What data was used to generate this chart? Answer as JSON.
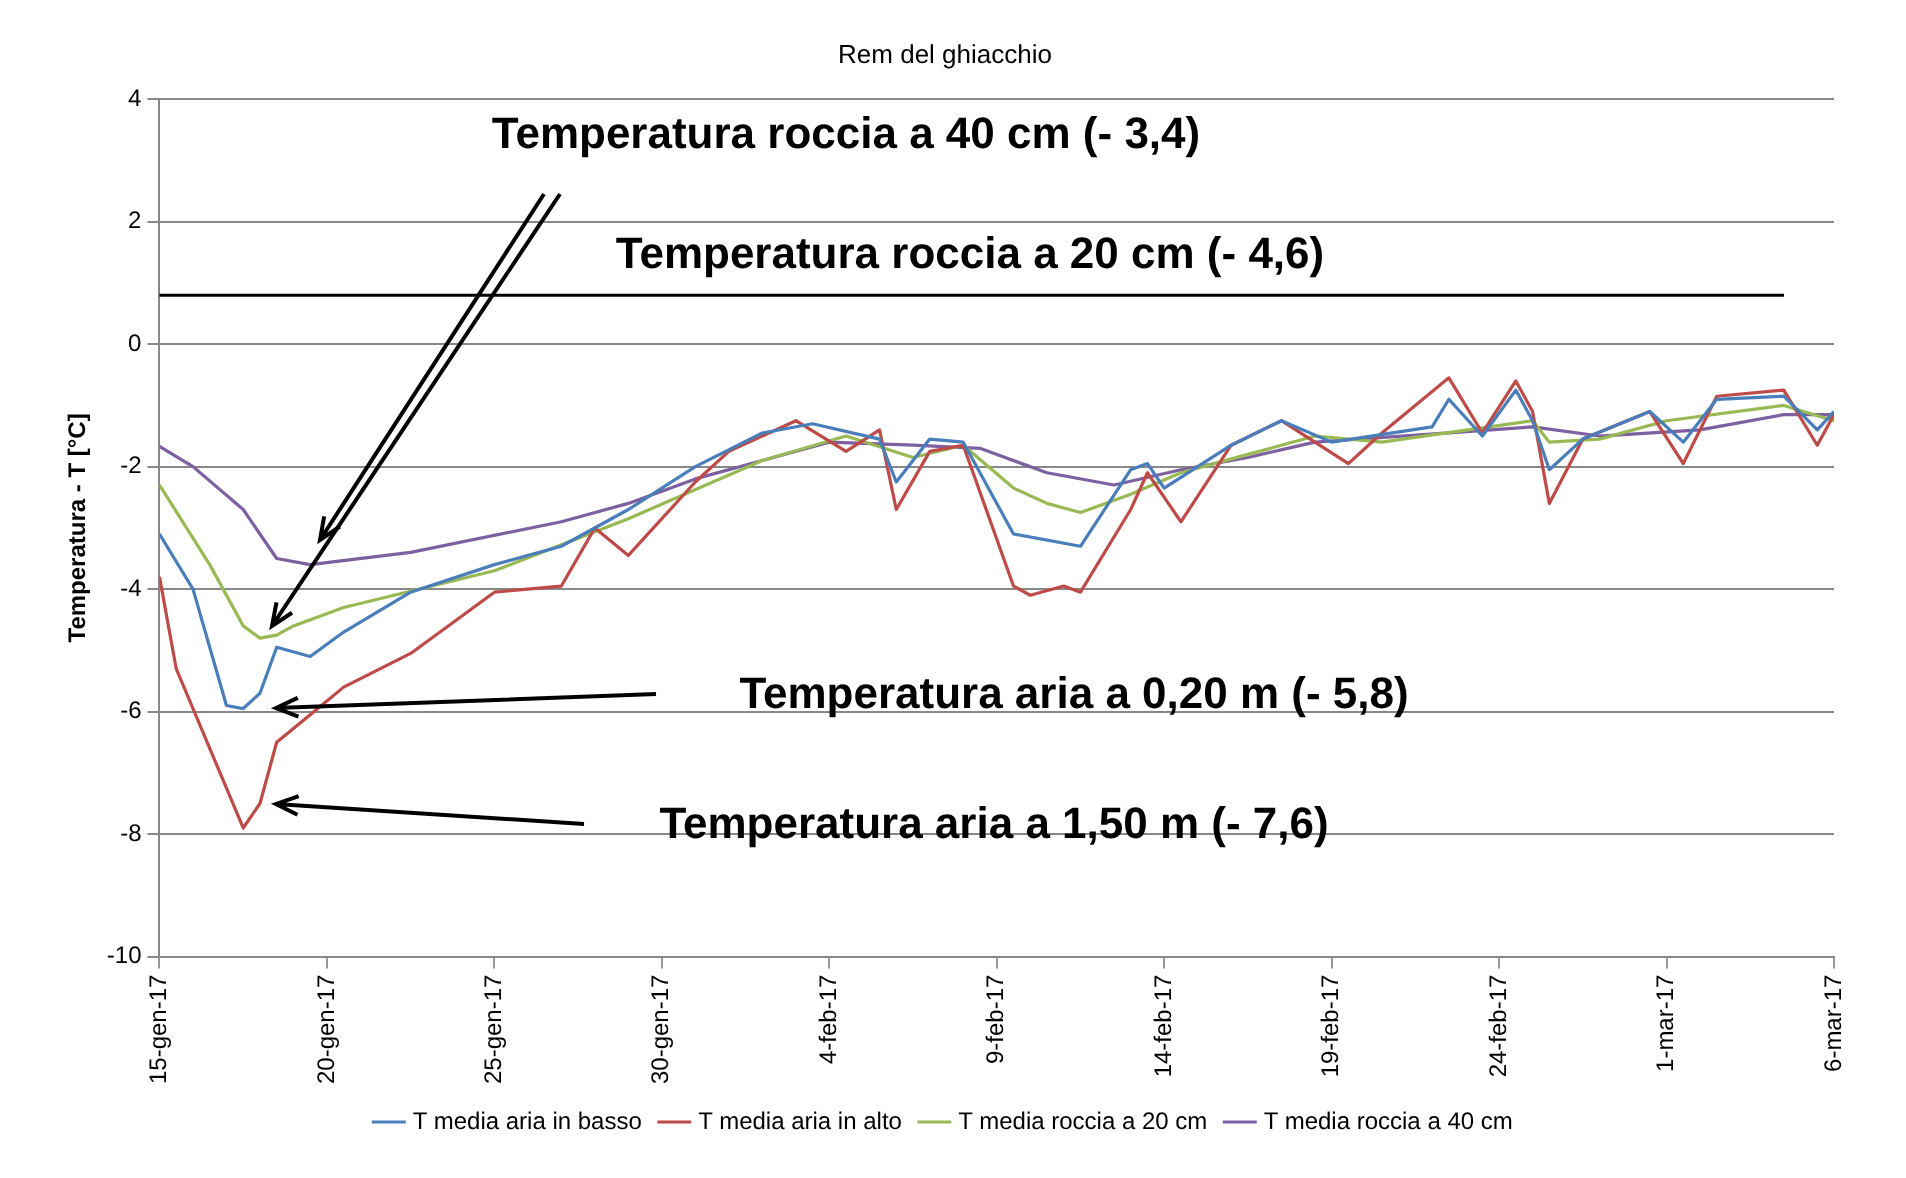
{
  "chart_data": {
    "type": "line",
    "title": "Rem del ghiacchio",
    "ylabel": "Temperatura - T [°C]",
    "xlim": [
      "--01-15",
      "--03-06"
    ],
    "xticks": [
      {
        "value": "--01-15",
        "label": "15-gen-17"
      },
      {
        "value": "--01-20",
        "label": "20-gen-17"
      },
      {
        "value": "--01-25",
        "label": "25-gen-17"
      },
      {
        "value": "--01-30",
        "label": "30-gen-17"
      },
      {
        "value": "--02-04",
        "label": "4-feb-17"
      },
      {
        "value": "--02-09",
        "label": "9-feb-17"
      },
      {
        "value": "--02-14",
        "label": "14-feb-17"
      },
      {
        "value": "--02-19",
        "label": "19-feb-17"
      },
      {
        "value": "--02-24",
        "label": "24-feb-17"
      },
      {
        "value": "--03-01",
        "label": "1-mar-17"
      },
      {
        "value": "--03-06",
        "label": "6-mar-17"
      }
    ],
    "ylim": [
      -10,
      4
    ],
    "yticks": [
      -10,
      -8,
      -6,
      -4,
      -2,
      0,
      2,
      4
    ],
    "grid": "y",
    "legend": "bottom",
    "marker": "none",
    "line_style": "solid",
    "ref_lines": [
      {
        "axis": "y",
        "value": 0.8,
        "color": "#000000"
      }
    ],
    "annotations": [
      "Temperatura roccia a 40 cm (- 3,4)",
      "Temperatura roccia a 20 cm (- 4,6)",
      "Temperatura aria a 0,20 m (- 5,8)",
      "Temperatura aria a 1,50 m (- 7,6)"
    ],
    "series": [
      {
        "name": "T media aria in basso",
        "color": "#4a7ebb",
        "x": [
          "--01-15",
          "--01-16",
          "--01-17",
          "--01-17T12:00",
          "--01-18",
          "--01-18T12:00",
          "--01-19T12:00",
          "--01-20T12:00",
          "--01-22T12:00",
          "--01-25",
          "--01-27",
          "--01-29",
          "--01-31",
          "--02-02",
          "--02-03T12:00",
          "--02-05T12:00",
          "--02-06",
          "--02-07",
          "--02-08",
          "--02-09T12:00",
          "--02-11T12:00",
          "--02-13",
          "--02-13T12:00",
          "--02-14",
          "--02-16",
          "--02-17T12:00",
          "--02-19",
          "--02-22",
          "--02-22T12:00",
          "--02-23T12:00",
          "--02-24T12:00",
          "--02-25",
          "--02-25T12:00",
          "--02-26T12:00",
          "--02-28T12:00",
          "--03-01T12:00",
          "--03-02T12:00",
          "--03-04T12:00",
          "--03-05T12:00",
          "--03-06"
        ],
        "values": [
          -3.1,
          -4.0,
          -5.9,
          -5.95,
          -5.7,
          -4.95,
          -5.1,
          -4.7,
          -4.05,
          -3.6,
          -3.3,
          -2.7,
          -2.0,
          -1.45,
          -1.3,
          -1.55,
          -2.25,
          -1.55,
          -1.6,
          -3.1,
          -3.3,
          -2.05,
          -1.95,
          -2.35,
          -1.65,
          -1.25,
          -1.6,
          -1.35,
          -0.9,
          -1.5,
          -0.75,
          -1.25,
          -2.05,
          -1.55,
          -1.1,
          -1.6,
          -0.9,
          -0.85,
          -1.4,
          -1.1
        ]
      },
      {
        "name": "T media aria in alto",
        "color": "#be4b48",
        "x": [
          "--01-15",
          "--01-15T12:00",
          "--01-16T12:00",
          "--01-17T12:00",
          "--01-18",
          "--01-18T12:00",
          "--01-19T12:00",
          "--01-20T12:00",
          "--01-22T12:00",
          "--01-25",
          "--01-27",
          "--01-28",
          "--01-29",
          "--01-31",
          "--02-01",
          "--02-03",
          "--02-04T12:00",
          "--02-05T12:00",
          "--02-06",
          "--02-07",
          "--02-08",
          "--02-09T12:00",
          "--02-10",
          "--02-11",
          "--02-11T12:00",
          "--02-13",
          "--02-13T12:00",
          "--02-14T12:00",
          "--02-16",
          "--02-17T12:00",
          "--02-19T12:00",
          "--02-20T12:00",
          "--02-22T12:00",
          "--02-23T12:00",
          "--02-24T12:00",
          "--02-25",
          "--02-25T12:00",
          "--02-26T12:00",
          "--02-28T12:00",
          "--03-01T12:00",
          "--03-02T12:00",
          "--03-04T12:00",
          "--03-05T12:00",
          "--03-06"
        ],
        "values": [
          -3.8,
          -5.3,
          -6.6,
          -7.9,
          -7.5,
          -6.5,
          -6.05,
          -5.6,
          -5.05,
          -4.05,
          -3.95,
          -3.0,
          -3.45,
          -2.25,
          -1.75,
          -1.25,
          -1.75,
          -1.4,
          -2.7,
          -1.75,
          -1.65,
          -3.95,
          -4.1,
          -3.95,
          -4.05,
          -2.7,
          -2.1,
          -2.9,
          -1.65,
          -1.25,
          -1.95,
          -1.45,
          -0.55,
          -1.45,
          -0.6,
          -1.1,
          -2.6,
          -1.55,
          -1.1,
          -1.95,
          -0.85,
          -0.75,
          -1.65,
          -1.15
        ]
      },
      {
        "name": "T media roccia a 20 cm",
        "color": "#98b954",
        "x": [
          "--01-15",
          "--01-16T12:00",
          "--01-17T12:00",
          "--01-18",
          "--01-18T12:00",
          "--01-19",
          "--01-20T12:00",
          "--01-25",
          "--01-29",
          "--02-02",
          "--02-04T12:00",
          "--02-06T12:00",
          "--02-08",
          "--02-09T12:00",
          "--02-10T12:00",
          "--02-11T12:00",
          "--02-13",
          "--02-14T12:00",
          "--02-16T12:00",
          "--02-18T12:00",
          "--02-20T12:00",
          "--02-25",
          "--02-25T12:00",
          "--02-27",
          "--03-01",
          "--03-04T12:00",
          "--03-06"
        ],
        "values": [
          -2.3,
          -3.6,
          -4.6,
          -4.8,
          -4.75,
          -4.6,
          -4.3,
          -3.7,
          -2.85,
          -1.9,
          -1.5,
          -1.85,
          -1.65,
          -2.35,
          -2.6,
          -2.75,
          -2.45,
          -2.1,
          -1.8,
          -1.5,
          -1.6,
          -1.25,
          -1.6,
          -1.55,
          -1.25,
          -1.0,
          -1.25
        ]
      },
      {
        "name": "T media roccia a 40 cm",
        "color": "#7d60a0",
        "x": [
          "--01-15",
          "--01-16",
          "--01-17T12:00",
          "--01-18T12:00",
          "--01-19T12:00",
          "--01-22T12:00",
          "--01-27",
          "--01-29",
          "--01-31",
          "--02-02",
          "--02-04",
          "--02-06T12:00",
          "--02-08T12:00",
          "--02-10T12:00",
          "--02-12T12:00",
          "--02-14T12:00",
          "--02-16T12:00",
          "--02-18T12:00",
          "--02-22T12:00",
          "--02-25",
          "--02-27",
          "--03-02",
          "--03-04T12:00",
          "--03-06"
        ],
        "values": [
          -1.67,
          -2.0,
          -2.7,
          -3.5,
          -3.6,
          -3.4,
          -2.9,
          -2.6,
          -2.2,
          -1.9,
          -1.6,
          -1.65,
          -1.7,
          -2.1,
          -2.3,
          -2.05,
          -1.85,
          -1.6,
          -1.45,
          -1.35,
          -1.5,
          -1.4,
          -1.15,
          -1.15
        ]
      }
    ]
  }
}
